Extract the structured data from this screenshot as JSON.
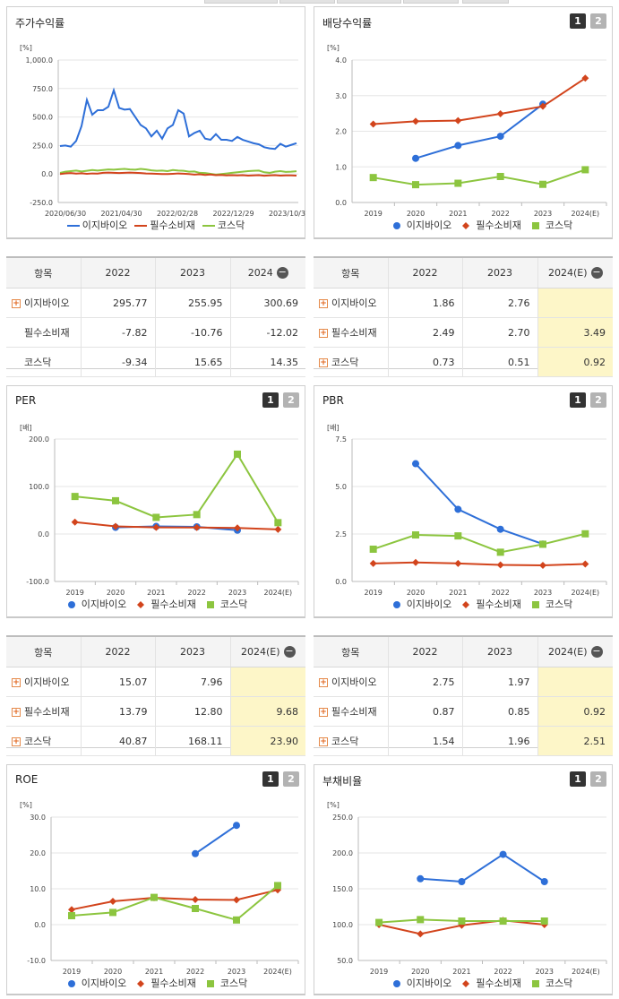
{
  "labels": {
    "legend": [
      "이지바이오",
      "필수소비재",
      "코스닥"
    ],
    "btn1": "1",
    "btn2": "2",
    "minus": "−",
    "plus": "+"
  },
  "colors": {
    "s0": "#2e6fd8",
    "s1": "#d2441c",
    "s2": "#8cc53f"
  },
  "charts": [
    {
      "id": "stock",
      "title": "주가수익률",
      "unit": "[%]",
      "buttons": false,
      "chart_data": {
        "type": "line",
        "title": "주가수익률",
        "ylim": [
          -250,
          1000
        ],
        "yticks": [
          "1,000.0",
          "750.0",
          "500.0",
          "250.0",
          "0.0",
          "-250.0"
        ],
        "xticks": [
          "2020/06/30",
          "2021/04/30",
          "2022/02/28",
          "2022/12/29",
          "2023/10/31"
        ],
        "series": [
          {
            "name": "이지바이오",
            "values": [
              245,
              250,
              240,
              290,
              420,
              650,
              520,
              560,
              560,
              590,
              735,
              580,
              565,
              570,
              500,
              430,
              400,
              330,
              380,
              310,
              400,
              430,
              560,
              530,
              330,
              360,
              380,
              310,
              300,
              350,
              300,
              300,
              290,
              325,
              300,
              285,
              270,
              260,
              235,
              225,
              220,
              265,
              240,
              255,
              270
            ]
          },
          {
            "name": "필수소비재",
            "values": [
              0,
              5,
              8,
              4,
              6,
              2,
              5,
              4,
              10,
              12,
              10,
              8,
              10,
              12,
              10,
              8,
              5,
              4,
              2,
              0,
              0,
              2,
              5,
              3,
              0,
              -5,
              -2,
              -8,
              -4,
              -10,
              -8,
              -12,
              -10,
              -12,
              -10,
              -14,
              -12,
              -10,
              -15,
              -12,
              -10,
              -14,
              -12,
              -12,
              -14
            ]
          },
          {
            "name": "코스닥",
            "values": [
              10,
              20,
              25,
              30,
              22,
              28,
              35,
              30,
              35,
              40,
              38,
              42,
              45,
              40,
              38,
              45,
              40,
              32,
              28,
              30,
              25,
              35,
              30,
              28,
              20,
              22,
              10,
              8,
              2,
              -5,
              0,
              5,
              10,
              15,
              20,
              25,
              28,
              30,
              15,
              10,
              20,
              25,
              18,
              20,
              24
            ]
          }
        ]
      }
    },
    {
      "id": "dividend",
      "title": "배당수익률",
      "unit": "[%]",
      "buttons": true,
      "chart_data": {
        "type": "line",
        "title": "배당수익률",
        "ylim": [
          0,
          4
        ],
        "yticks": [
          "4.0",
          "3.0",
          "2.0",
          "1.0",
          "0.0"
        ],
        "categories": [
          "2019",
          "2020",
          "2021",
          "2022",
          "2023",
          "2024(E)"
        ],
        "series": [
          {
            "name": "이지바이오",
            "values": [
              null,
              1.24,
              1.6,
              1.86,
              2.76,
              null
            ]
          },
          {
            "name": "필수소비재",
            "values": [
              2.2,
              2.28,
              2.3,
              2.49,
              2.7,
              3.49
            ]
          },
          {
            "name": "코스닥",
            "values": [
              0.7,
              0.5,
              0.54,
              0.73,
              0.51,
              0.92
            ]
          }
        ]
      }
    },
    {
      "id": "per",
      "title": "PER",
      "unit": "[배]",
      "buttons": true,
      "chart_data": {
        "type": "line",
        "title": "PER",
        "ylim": [
          -100,
          200
        ],
        "yticks": [
          "200.0",
          "100.0",
          "0.0",
          "-100.0"
        ],
        "categories": [
          "2019",
          "2020",
          "2021",
          "2022",
          "2023",
          "2024(E)"
        ],
        "series": [
          {
            "name": "이지바이오",
            "values": [
              null,
              14,
              16,
              15.07,
              7.96,
              null
            ]
          },
          {
            "name": "필수소비재",
            "values": [
              25,
              16,
              14,
              13.79,
              12.8,
              9.68
            ]
          },
          {
            "name": "코스닥",
            "values": [
              79,
              70,
              35,
              40.87,
              168.11,
              23.9
            ]
          }
        ]
      }
    },
    {
      "id": "pbr",
      "title": "PBR",
      "unit": "[배]",
      "buttons": true,
      "chart_data": {
        "type": "line",
        "title": "PBR",
        "ylim": [
          0,
          7.5
        ],
        "yticks": [
          "7.5",
          "5.0",
          "2.5",
          "0.0"
        ],
        "categories": [
          "2019",
          "2020",
          "2021",
          "2022",
          "2023",
          "2024(E)"
        ],
        "series": [
          {
            "name": "이지바이오",
            "values": [
              null,
              6.2,
              3.8,
              2.75,
              1.97,
              null
            ]
          },
          {
            "name": "필수소비재",
            "values": [
              0.95,
              1.0,
              0.95,
              0.87,
              0.85,
              0.92
            ]
          },
          {
            "name": "코스닥",
            "values": [
              1.7,
              2.45,
              2.4,
              1.54,
              1.96,
              2.51
            ]
          }
        ]
      }
    },
    {
      "id": "roe",
      "title": "ROE",
      "unit": "[%]",
      "buttons": true,
      "chart_data": {
        "type": "line",
        "title": "ROE",
        "ylim": [
          -10,
          30
        ],
        "yticks": [
          "30.0",
          "20.0",
          "10.0",
          "0.0",
          "-10.0"
        ],
        "categories": [
          "2019",
          "2020",
          "2021",
          "2022",
          "2023",
          "2024(E)"
        ],
        "series": [
          {
            "name": "이지바이오",
            "values": [
              null,
              null,
              null,
              19.8,
              27.7,
              null
            ]
          },
          {
            "name": "필수소비재",
            "values": [
              4.2,
              6.5,
              7.5,
              7.0,
              6.9,
              9.7
            ]
          },
          {
            "name": "코스닥",
            "values": [
              2.5,
              3.4,
              7.6,
              4.5,
              1.3,
              10.9
            ]
          }
        ]
      }
    },
    {
      "id": "debt",
      "title": "부채비율",
      "unit": "[%]",
      "buttons": true,
      "chart_data": {
        "type": "line",
        "title": "부채비율",
        "ylim": [
          50,
          250
        ],
        "yticks": [
          "250.0",
          "200.0",
          "150.0",
          "100.0",
          "50.0"
        ],
        "categories": [
          "2019",
          "2020",
          "2021",
          "2022",
          "2023",
          "2024(E)"
        ],
        "series": [
          {
            "name": "이지바이오",
            "values": [
              null,
              164,
              160,
              198,
              160,
              null
            ]
          },
          {
            "name": "필수소비재",
            "values": [
              100,
              87,
              99,
              106,
              100,
              null
            ]
          },
          {
            "name": "코스닥",
            "values": [
              103,
              107,
              105,
              105,
              105,
              null
            ]
          }
        ]
      }
    }
  ],
  "tables": [
    {
      "id": "stock-table",
      "header": [
        "항목",
        "2022",
        "2023",
        "2024"
      ],
      "hl": false,
      "minus": true,
      "rows": [
        {
          "label": "이지바이오",
          "plus": true,
          "vals": [
            "295.77",
            "255.95",
            "300.69"
          ]
        },
        {
          "label": "필수소비재",
          "plus": false,
          "vals": [
            "-7.82",
            "-10.76",
            "-12.02"
          ]
        },
        {
          "label": "코스닥",
          "plus": false,
          "vals": [
            "-9.34",
            "15.65",
            "14.35"
          ]
        }
      ]
    },
    {
      "id": "dividend-table",
      "header": [
        "항목",
        "2022",
        "2023",
        "2024(E)"
      ],
      "hl": true,
      "minus": true,
      "rows": [
        {
          "label": "이지바이오",
          "plus": true,
          "vals": [
            "1.86",
            "2.76",
            ""
          ]
        },
        {
          "label": "필수소비재",
          "plus": true,
          "vals": [
            "2.49",
            "2.70",
            "3.49"
          ]
        },
        {
          "label": "코스닥",
          "plus": true,
          "vals": [
            "0.73",
            "0.51",
            "0.92"
          ]
        }
      ]
    },
    {
      "id": "per-table",
      "header": [
        "항목",
        "2022",
        "2023",
        "2024(E)"
      ],
      "hl": true,
      "minus": true,
      "rows": [
        {
          "label": "이지바이오",
          "plus": true,
          "vals": [
            "15.07",
            "7.96",
            ""
          ]
        },
        {
          "label": "필수소비재",
          "plus": true,
          "vals": [
            "13.79",
            "12.80",
            "9.68"
          ]
        },
        {
          "label": "코스닥",
          "plus": true,
          "vals": [
            "40.87",
            "168.11",
            "23.90"
          ]
        }
      ]
    },
    {
      "id": "pbr-table",
      "header": [
        "항목",
        "2022",
        "2023",
        "2024(E)"
      ],
      "hl": true,
      "minus": true,
      "rows": [
        {
          "label": "이지바이오",
          "plus": true,
          "vals": [
            "2.75",
            "1.97",
            ""
          ]
        },
        {
          "label": "필수소비재",
          "plus": true,
          "vals": [
            "0.87",
            "0.85",
            "0.92"
          ]
        },
        {
          "label": "코스닥",
          "plus": true,
          "vals": [
            "1.54",
            "1.96",
            "2.51"
          ]
        }
      ]
    }
  ]
}
